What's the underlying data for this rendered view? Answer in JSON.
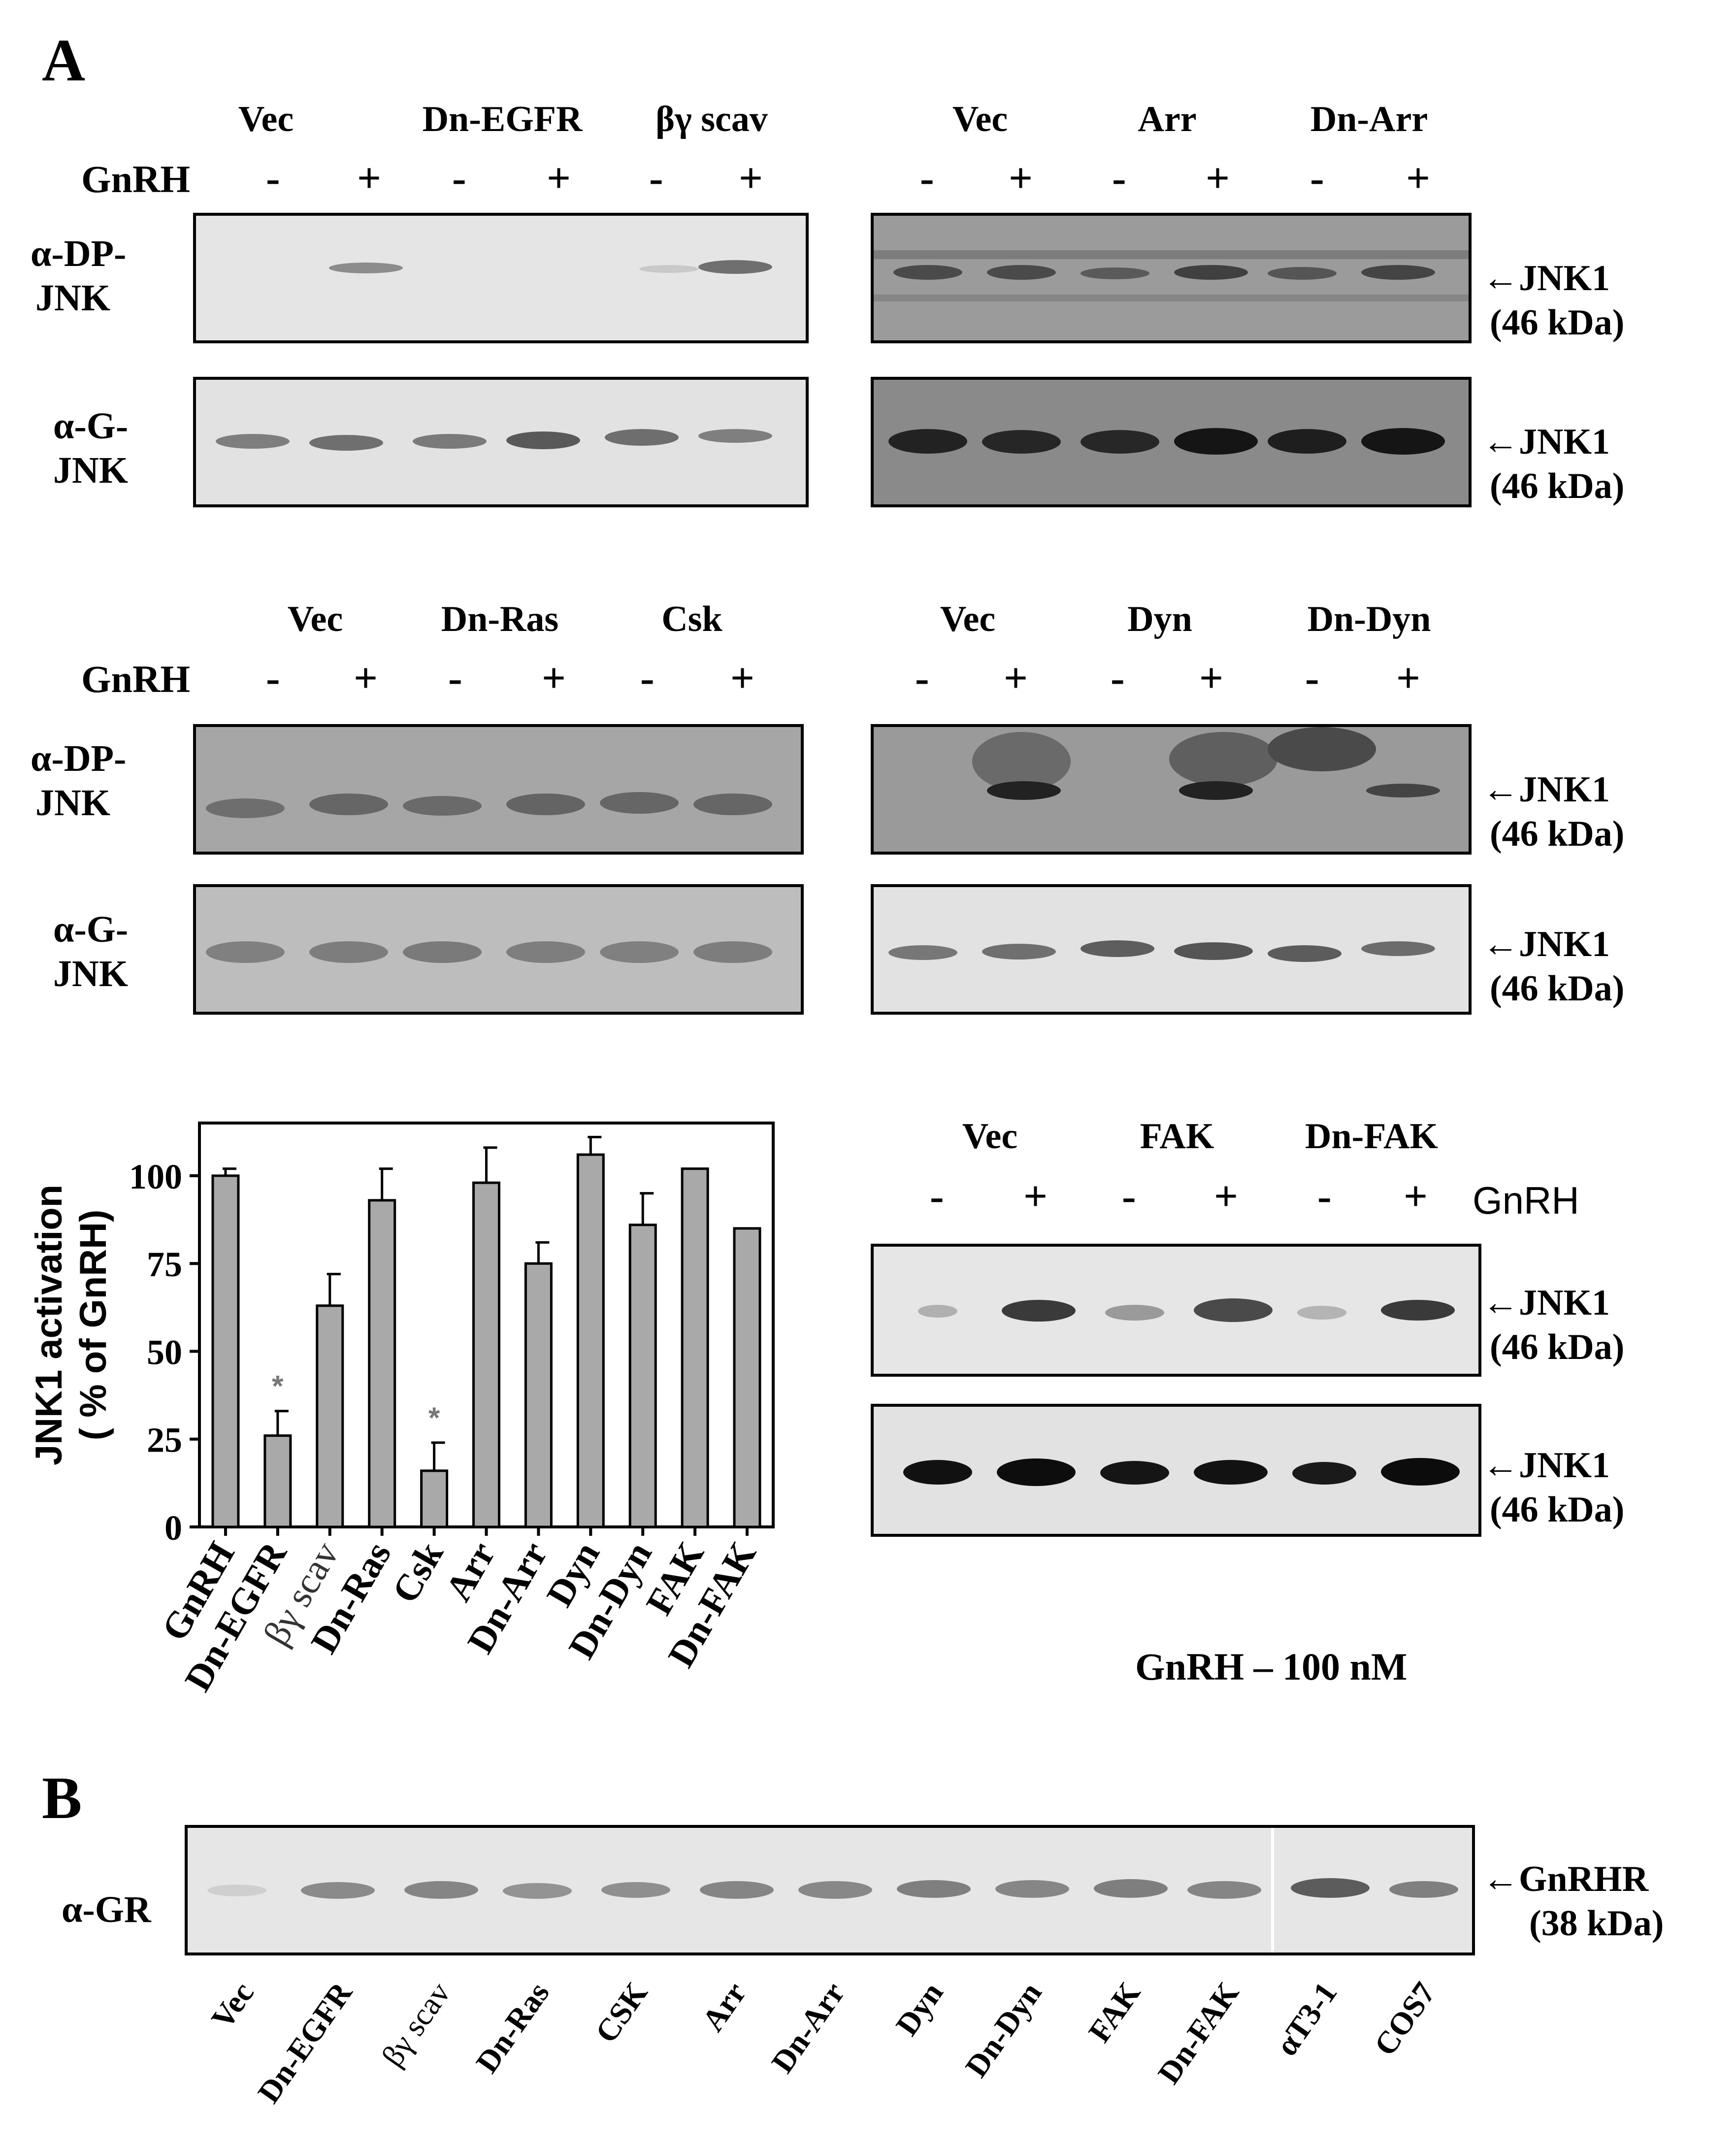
{
  "panels": {
    "A_label": "A",
    "B_label": "B"
  },
  "common": {
    "gnrh": "GnRH",
    "minus": "-",
    "plus": "+",
    "marker_jnk": "JNK1",
    "marker_jnk_kda": "(46 kDa)",
    "marker_gnrhr": "GnRHR",
    "marker_gnrhr_kda": "(38 kDa)",
    "row_dp_1": "α-DP-",
    "row_dp_2": "JNK",
    "row_g_1": "α-G-",
    "row_g_2": "JNK",
    "row_gr": "α-GR",
    "arrow": "←"
  },
  "blot_sets": [
    {
      "conditions": [
        "Vec",
        "Dn-EGFR",
        "βγ scav"
      ]
    },
    {
      "conditions": [
        "Vec",
        "Arr",
        "Dn-Arr"
      ]
    },
    {
      "conditions": [
        "Vec",
        "Dn-Ras",
        "Csk"
      ]
    },
    {
      "conditions": [
        "Vec",
        "Dyn",
        "Dn-Dyn"
      ]
    },
    {
      "conditions": [
        "Vec",
        "FAK",
        "Dn-FAK"
      ]
    }
  ],
  "footnote": "GnRH – 100 nM",
  "panel_b_lanes": [
    "Vec",
    "Dn-EGFR",
    "βγ scav",
    "Dn-Ras",
    "CSK",
    "Arr",
    "Dn-Arr",
    "Dyn",
    "Dn-Dyn",
    "FAK",
    "Dn-FAK",
    "αT3-1",
    "COS7"
  ],
  "chart_data": {
    "type": "bar",
    "categories": [
      "GnRH",
      "Dn-EGFR",
      "βγ scav",
      "Dn-Ras",
      "Csk",
      "Arr",
      "Dn-Arr",
      "Dyn",
      "Dn-Dyn",
      "FAK",
      "Dn-FAK"
    ],
    "values": [
      100,
      26,
      63,
      93,
      16,
      98,
      75,
      106,
      86,
      102,
      85
    ],
    "errors": [
      2,
      7,
      9,
      9,
      8,
      10,
      6,
      5,
      9,
      0,
      0
    ],
    "significant": [
      false,
      true,
      false,
      false,
      true,
      false,
      false,
      false,
      false,
      false,
      false
    ],
    "significance_mark": "*",
    "ylabel_line1": "JNK1 activation",
    "ylabel_line2": "( % of GnRH)",
    "ylim": [
      0,
      115
    ],
    "yticks": [
      "0",
      "25",
      "50",
      "75",
      "100"
    ],
    "bar_color": "#a9a9a9"
  }
}
